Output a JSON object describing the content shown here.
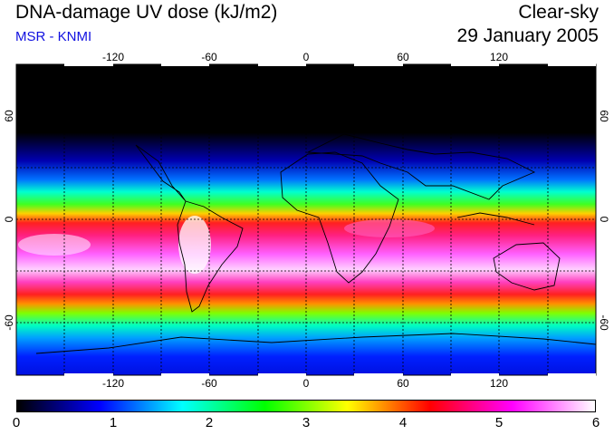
{
  "header": {
    "title": "DNA-damage UV dose (kJ/m2)",
    "subtitle": "MSR - KNMI",
    "condition": "Clear-sky",
    "date": "29 January 2005"
  },
  "map": {
    "lon_ticks": [
      "-120",
      "-60",
      "0",
      "60",
      "120"
    ],
    "lat_ticks": [
      "60",
      "0",
      "-60"
    ]
  },
  "colorbar": {
    "labels": [
      "0",
      "1",
      "2",
      "3",
      "4",
      "5",
      "6"
    ],
    "colors": [
      "#000000",
      "#0000ff",
      "#00ffff",
      "#00ff00",
      "#ffff00",
      "#ff0000",
      "#ff00ff",
      "#ffffff"
    ]
  }
}
